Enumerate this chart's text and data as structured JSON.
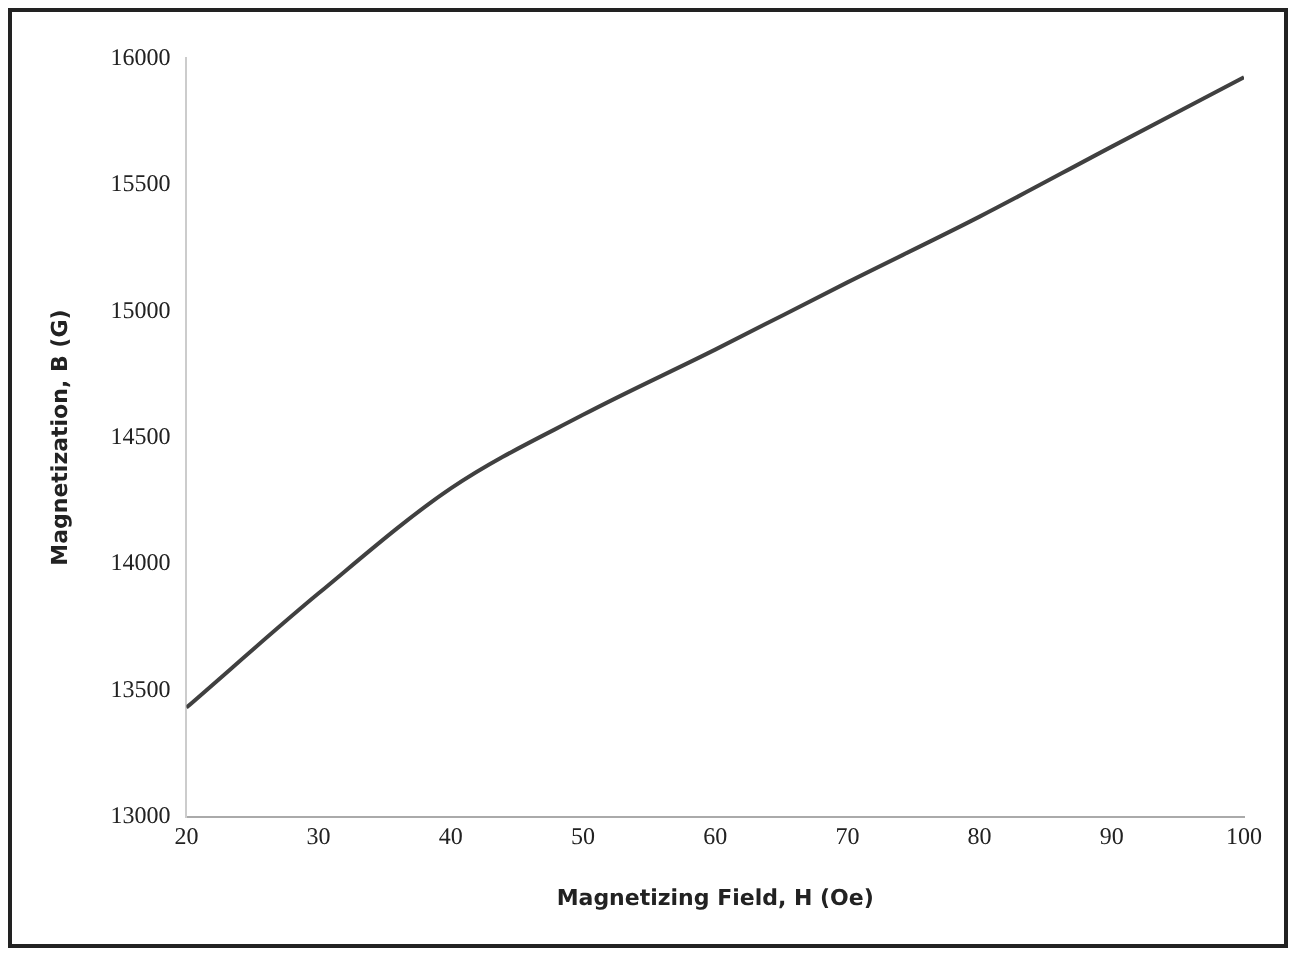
{
  "chart_data": {
    "type": "line",
    "xlabel": "Magnetizing Field, H (Oe)",
    "ylabel": "Magnetization, B (G)",
    "x": [
      20,
      30,
      40,
      50,
      60,
      70,
      80,
      90,
      100
    ],
    "series": [
      {
        "color": "#404040",
        "values": [
          13432,
          13884,
          14299,
          14590,
          14848,
          15114,
          15374,
          15651,
          15925
        ]
      }
    ],
    "xlim": [
      20,
      100
    ],
    "xticks": [
      20,
      30,
      40,
      50,
      60,
      70,
      80,
      90,
      100
    ],
    "ylim": [
      13000,
      16000
    ],
    "yticks": [
      13000,
      13500,
      14000,
      14500,
      15000,
      15500,
      16000
    ],
    "grid": false,
    "legend": false,
    "marker": "none",
    "line_style": "solid"
  }
}
